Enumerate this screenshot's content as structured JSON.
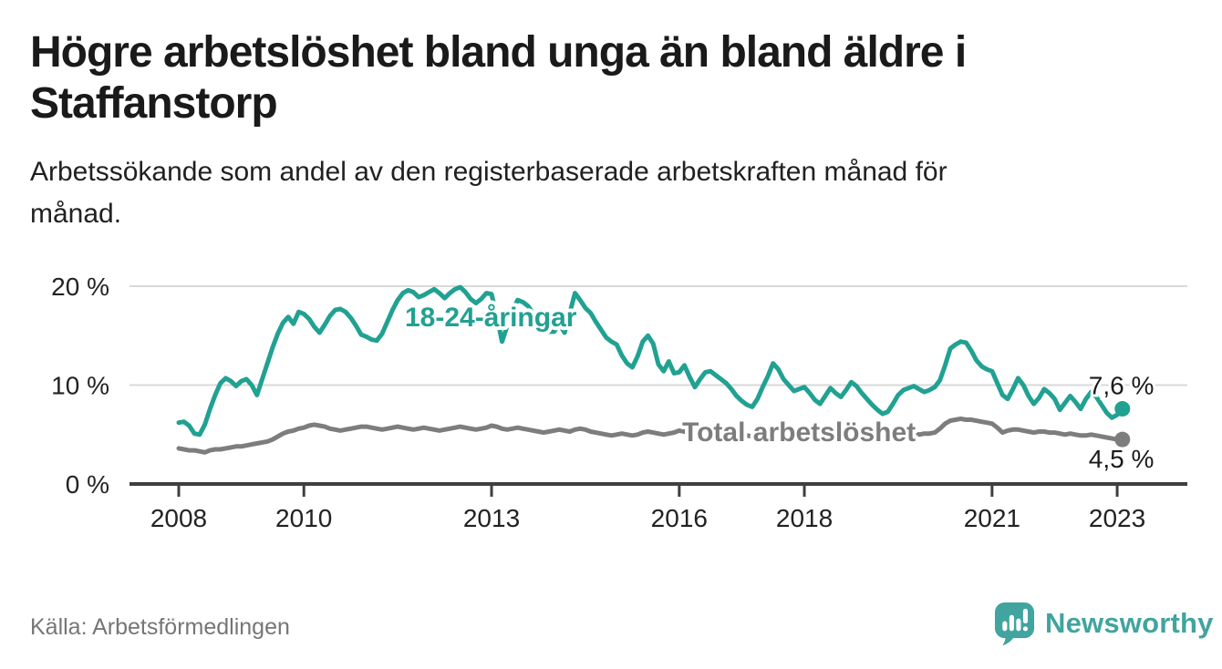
{
  "header": {
    "title": "Högre arbetslöshet bland unga än bland äldre i Staffanstorp",
    "title_lines": [
      "Högre arbetslöshet bland unga än bland äldre i",
      "Staffanstorp"
    ],
    "subtitle_lines": [
      "Arbetssökande som andel av den registerbaserade arbetskraften månad för",
      "månad."
    ]
  },
  "footer": {
    "source": "Källa: Arbetsförmedlingen",
    "brand": "Newsworthy",
    "brand_color": "#41a49e"
  },
  "chart_data": {
    "type": "line",
    "x_unit": "month",
    "x_start": "2008-01",
    "x_end": "2023-02",
    "x_ticks": [
      2008,
      2010,
      2013,
      2016,
      2018,
      2021,
      2023
    ],
    "y_axis": [
      {
        "value": 0,
        "label": "0 %"
      },
      {
        "value": 10,
        "label": "10 %"
      },
      {
        "value": 20,
        "label": "20 %"
      }
    ],
    "ylim": [
      0,
      21
    ],
    "grid": "horizontal",
    "colors": {
      "grid": "#d9d9d9",
      "axis": "#3f3f3f",
      "tick_text": "#222222",
      "value_label": "#1c1c1c"
    },
    "series": [
      {
        "name": "18-24-åringar",
        "color": "#21a192",
        "end_label": "7,6 %",
        "last_value": 7.6,
        "values": [
          6.2,
          6.3,
          5.9,
          5.1,
          5.0,
          6.0,
          7.6,
          9.0,
          10.2,
          10.7,
          10.4,
          9.9,
          10.4,
          10.6,
          10.0,
          9.0,
          10.6,
          12.2,
          13.8,
          15.2,
          16.3,
          16.9,
          16.2,
          17.4,
          17.2,
          16.7,
          15.9,
          15.3,
          16.1,
          17.0,
          17.6,
          17.7,
          17.4,
          16.8,
          16.0,
          15.1,
          14.9,
          14.6,
          14.5,
          15.2,
          16.4,
          17.6,
          18.6,
          19.3,
          19.6,
          19.4,
          18.9,
          19.1,
          19.4,
          19.7,
          19.3,
          18.8,
          19.3,
          19.7,
          19.9,
          19.4,
          18.7,
          18.3,
          18.7,
          19.3,
          19.2,
          17.0,
          14.4,
          16.0,
          17.5,
          18.6,
          18.4,
          18.0,
          17.2,
          16.4,
          15.8,
          15.4,
          15.4,
          16.2,
          15.3,
          17.3,
          19.3,
          18.6,
          17.8,
          17.3,
          16.4,
          15.6,
          14.8,
          14.4,
          14.1,
          13.0,
          12.2,
          11.8,
          12.9,
          14.4,
          15.0,
          14.2,
          12.1,
          11.4,
          12.4,
          11.2,
          11.3,
          12.0,
          10.8,
          9.8,
          10.6,
          11.3,
          11.4,
          11.0,
          10.6,
          10.2,
          9.6,
          8.9,
          8.4,
          8.0,
          7.8,
          8.6,
          9.8,
          10.9,
          12.2,
          11.6,
          10.6,
          10.0,
          9.4,
          9.6,
          9.8,
          9.2,
          8.5,
          8.1,
          8.9,
          9.7,
          9.2,
          8.8,
          9.5,
          10.3,
          9.9,
          9.2,
          8.6,
          8.0,
          7.5,
          7.1,
          7.3,
          8.1,
          9.0,
          9.5,
          9.7,
          9.9,
          9.6,
          9.3,
          9.5,
          9.8,
          10.5,
          12.0,
          13.7,
          14.1,
          14.4,
          14.3,
          13.5,
          12.5,
          11.9,
          11.6,
          11.4,
          10.2,
          9.0,
          8.6,
          9.6,
          10.7,
          10.0,
          8.9,
          8.1,
          8.7,
          9.6,
          9.2,
          8.6,
          7.5,
          8.2,
          8.9,
          8.3,
          7.6,
          8.6,
          9.3,
          8.8,
          8.0,
          7.2,
          6.7,
          7.0,
          7.6
        ]
      },
      {
        "name": "Total arbetslöshet",
        "color": "#7d7d7d",
        "end_label": "4,5 %",
        "last_value": 4.5,
        "values": [
          3.6,
          3.5,
          3.4,
          3.4,
          3.3,
          3.2,
          3.4,
          3.5,
          3.5,
          3.6,
          3.7,
          3.8,
          3.8,
          3.9,
          4.0,
          4.1,
          4.2,
          4.3,
          4.5,
          4.8,
          5.1,
          5.3,
          5.4,
          5.6,
          5.7,
          5.9,
          6.0,
          5.9,
          5.8,
          5.6,
          5.5,
          5.4,
          5.5,
          5.6,
          5.7,
          5.8,
          5.8,
          5.7,
          5.6,
          5.5,
          5.6,
          5.7,
          5.8,
          5.7,
          5.6,
          5.5,
          5.6,
          5.7,
          5.6,
          5.5,
          5.4,
          5.5,
          5.6,
          5.7,
          5.8,
          5.7,
          5.6,
          5.5,
          5.6,
          5.7,
          5.9,
          5.8,
          5.6,
          5.5,
          5.6,
          5.7,
          5.6,
          5.5,
          5.4,
          5.3,
          5.2,
          5.3,
          5.4,
          5.5,
          5.4,
          5.3,
          5.5,
          5.6,
          5.5,
          5.3,
          5.2,
          5.1,
          5.0,
          4.9,
          5.0,
          5.1,
          5.0,
          4.9,
          5.0,
          5.2,
          5.3,
          5.2,
          5.1,
          5.0,
          5.1,
          5.2,
          5.4,
          5.3,
          5.2,
          5.1,
          5.2,
          5.3,
          5.2,
          5.1,
          5.0,
          4.9,
          5.0,
          5.1,
          5.0,
          4.9,
          4.8,
          4.9,
          5.0,
          5.1,
          5.2,
          5.1,
          5.0,
          5.1,
          5.2,
          5.1,
          5.2,
          5.1,
          5.0,
          4.9,
          5.0,
          5.1,
          5.0,
          4.9,
          5.0,
          5.1,
          5.0,
          4.9,
          4.9,
          4.8,
          4.8,
          4.9,
          5.0,
          5.1,
          5.2,
          5.1,
          5.0,
          5.1,
          5.0,
          5.1,
          5.1,
          5.2,
          5.6,
          6.1,
          6.4,
          6.5,
          6.6,
          6.5,
          6.5,
          6.4,
          6.3,
          6.2,
          6.1,
          5.7,
          5.2,
          5.4,
          5.5,
          5.5,
          5.4,
          5.3,
          5.2,
          5.3,
          5.3,
          5.2,
          5.2,
          5.1,
          5.0,
          5.1,
          5.0,
          4.9,
          4.9,
          5.0,
          4.9,
          4.8,
          4.7,
          4.6,
          4.5,
          4.5
        ]
      }
    ]
  }
}
